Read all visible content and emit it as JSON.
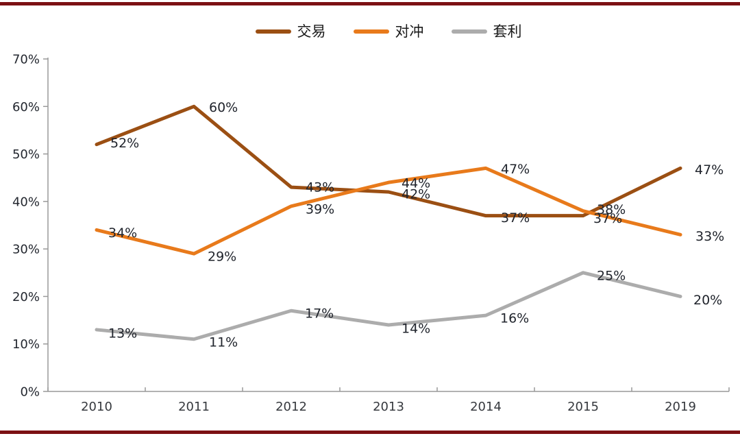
{
  "page": {
    "accent_bar_color": "#7C1013"
  },
  "chart_data": {
    "type": "line",
    "title": "",
    "xlabel": "",
    "ylabel": "",
    "categories": [
      "2010",
      "2011",
      "2012",
      "2013",
      "2014",
      "2015",
      "2019"
    ],
    "series": [
      {
        "name": "交易",
        "color": "#9B4F13",
        "values": [
          52,
          60,
          43,
          42,
          37,
          37,
          47
        ],
        "labels": [
          "52%",
          "60%",
          "43%",
          "42%",
          "37%",
          "37%",
          "47%"
        ],
        "label_offsets": [
          [
            20,
            -2
          ],
          [
            22,
            1
          ],
          [
            21,
            0
          ],
          [
            19,
            3
          ],
          [
            22,
            3
          ],
          [
            15,
            4
          ],
          [
            21,
            2
          ]
        ]
      },
      {
        "name": "对冲",
        "color": "#E87A1B",
        "values": [
          34,
          29,
          39,
          44,
          47,
          38,
          33
        ],
        "labels": [
          "34%",
          "29%",
          "39%",
          "44%",
          "47%",
          "38%",
          "33%"
        ],
        "label_offsets": [
          [
            17,
            4
          ],
          [
            20,
            4
          ],
          [
            21,
            4
          ],
          [
            19,
            1
          ],
          [
            22,
            1
          ],
          [
            20,
            -2
          ],
          [
            22,
            2
          ]
        ]
      },
      {
        "name": "套利",
        "color": "#ACACAC",
        "values": [
          13,
          11,
          17,
          14,
          16,
          25,
          20
        ],
        "labels": [
          "13%",
          "11%",
          "17%",
          "14%",
          "16%",
          "25%",
          "20%"
        ],
        "label_offsets": [
          [
            17,
            5
          ],
          [
            22,
            4
          ],
          [
            20,
            4
          ],
          [
            19,
            5
          ],
          [
            21,
            4
          ],
          [
            20,
            4
          ],
          [
            19,
            5
          ]
        ]
      }
    ],
    "ylim": [
      0,
      70
    ],
    "ytick_step": 10,
    "ytick_labels": [
      "0%",
      "10%",
      "20%",
      "30%",
      "40%",
      "50%",
      "60%",
      "70%"
    ],
    "legend_position": "top",
    "grid": false,
    "axis_color": "#999999",
    "data_label_color": "#20242C",
    "ytick_label_color": "#23272F",
    "xtick_label_color": "#36393E"
  }
}
